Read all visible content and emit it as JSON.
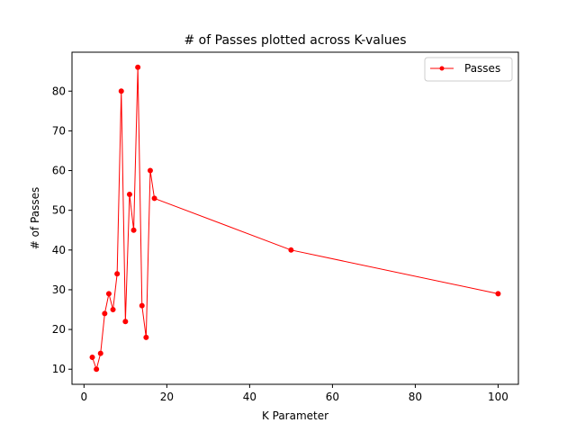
{
  "chart_data": {
    "type": "line",
    "title": "# of Passes plotted across K-values",
    "xlabel": "K Parameter",
    "ylabel": "# of Passes",
    "xlim": [
      -2.9,
      104.9
    ],
    "ylim": [
      6.2,
      89.8
    ],
    "xticks": [
      0,
      20,
      40,
      60,
      80,
      100
    ],
    "yticks": [
      10,
      20,
      30,
      40,
      50,
      60,
      70,
      80
    ],
    "grid": false,
    "legend": {
      "position": "top-right"
    },
    "series": [
      {
        "name": "Passes",
        "color": "#ff0000",
        "marker": "circle",
        "x": [
          2,
          3,
          4,
          5,
          6,
          7,
          8,
          9,
          10,
          11,
          12,
          13,
          14,
          15,
          16,
          17,
          50,
          100
        ],
        "y": [
          13,
          10,
          14,
          24,
          29,
          25,
          34,
          80,
          22,
          54,
          45,
          86,
          26,
          18,
          60,
          53,
          40,
          29
        ]
      }
    ]
  }
}
